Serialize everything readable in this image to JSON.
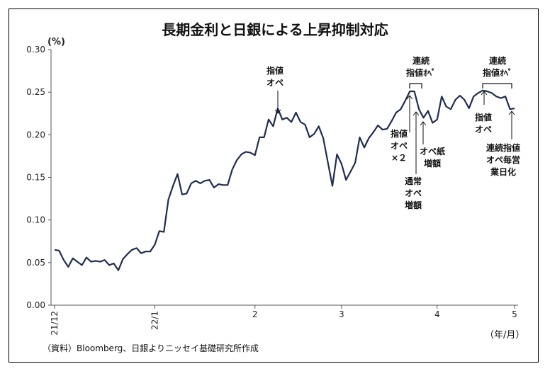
{
  "chart_data": {
    "type": "line",
    "title": "長期金利と日銀による上昇抑制対応",
    "ylabel": "(%)",
    "xunit": "（年/月）",
    "source": "（資料）Bloomberg、日銀よりニッセイ基礎研究所作成",
    "ylim": [
      0,
      0.3
    ],
    "yticks": [
      "0.30",
      "0.25",
      "0.20",
      "0.15",
      "0.10",
      "0.05",
      "0.00"
    ],
    "xticks": [
      "21/12",
      "22/1",
      "2",
      "3",
      "4",
      "5"
    ],
    "series": [
      {
        "color": "#1f2d4f",
        "values": [
          0.065,
          0.064,
          0.053,
          0.045,
          0.055,
          0.051,
          0.047,
          0.056,
          0.051,
          0.052,
          0.051,
          0.053,
          0.047,
          0.049,
          0.041,
          0.054,
          0.06,
          0.065,
          0.067,
          0.061,
          0.063,
          0.063,
          0.071,
          0.087,
          0.086,
          0.124,
          0.14,
          0.154,
          0.13,
          0.131,
          0.143,
          0.146,
          0.143,
          0.146,
          0.147,
          0.138,
          0.142,
          0.141,
          0.141,
          0.159,
          0.17,
          0.177,
          0.18,
          0.179,
          0.176,
          0.197,
          0.197,
          0.218,
          0.21,
          0.231,
          0.218,
          0.22,
          0.215,
          0.226,
          0.215,
          0.212,
          0.197,
          0.201,
          0.21,
          0.196,
          0.168,
          0.14,
          0.177,
          0.166,
          0.147,
          0.157,
          0.167,
          0.197,
          0.185,
          0.196,
          0.203,
          0.211,
          0.206,
          0.207,
          0.216,
          0.226,
          0.23,
          0.24,
          0.251,
          0.251,
          0.23,
          0.22,
          0.228,
          0.214,
          0.218,
          0.245,
          0.233,
          0.23,
          0.241,
          0.246,
          0.241,
          0.231,
          0.245,
          0.249,
          0.252,
          0.251,
          0.249,
          0.245,
          0.243,
          0.245,
          0.23,
          0.231
        ]
      }
    ],
    "annotations": [
      {
        "lines": [
          "指値",
          "オペ"
        ]
      },
      {
        "lines": [
          "連続",
          "指値ｵﾍﾟ"
        ]
      },
      {
        "lines": [
          "指値",
          "オペ",
          "×２"
        ]
      },
      {
        "lines": [
          "オペ紙",
          "増額"
        ]
      },
      {
        "lines": [
          "通常",
          "オペ",
          "増額"
        ]
      },
      {
        "lines": [
          "連続",
          "指値ｵﾍﾟ"
        ]
      },
      {
        "lines": [
          "指値",
          "オペ"
        ]
      },
      {
        "lines": [
          "連続指値",
          "オペ毎営",
          "業日化"
        ]
      }
    ]
  }
}
